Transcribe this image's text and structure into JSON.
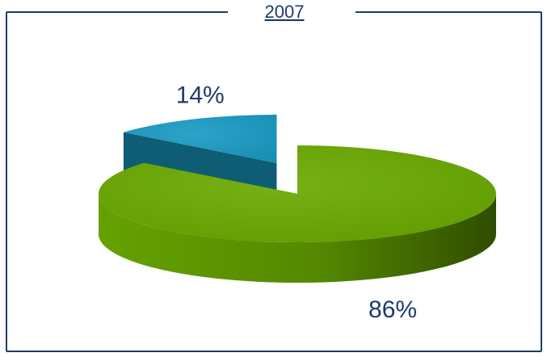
{
  "chart_data": {
    "type": "pie",
    "title": "2007",
    "values": [
      86,
      14
    ],
    "value_labels": [
      "86%",
      "14%"
    ],
    "colors": [
      "#6aaa00",
      "#1a9bc4"
    ]
  }
}
